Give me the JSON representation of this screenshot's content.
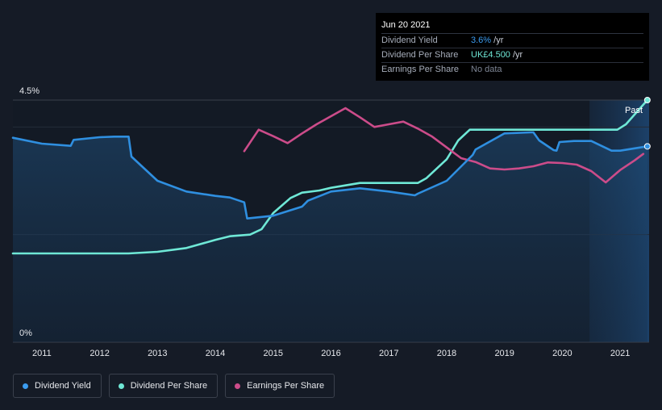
{
  "chart_data": {
    "type": "line",
    "y_axis": {
      "top_label": "4.5%",
      "bottom_label": "0%"
    },
    "x_axis": {
      "ticks": [
        "2011",
        "2012",
        "2013",
        "2014",
        "2015",
        "2016",
        "2017",
        "2018",
        "2019",
        "2020",
        "2021"
      ],
      "range": [
        2010.5,
        2021.5
      ]
    },
    "past_label": "Past",
    "series": [
      {
        "key": "yield",
        "name": "Dividend Yield",
        "color": "#2f8fe0",
        "filled": true,
        "points": [
          [
            2010.5,
            3.8
          ],
          [
            2011.0,
            3.69
          ],
          [
            2011.5,
            3.65
          ],
          [
            2011.55,
            3.76
          ],
          [
            2012.0,
            3.81
          ],
          [
            2012.25,
            3.82
          ],
          [
            2012.5,
            3.82
          ],
          [
            2012.55,
            3.45
          ],
          [
            2013.0,
            3.0
          ],
          [
            2013.5,
            2.8
          ],
          [
            2014.0,
            2.72
          ],
          [
            2014.25,
            2.69
          ],
          [
            2014.5,
            2.6
          ],
          [
            2014.55,
            2.3
          ],
          [
            2015.0,
            2.35
          ],
          [
            2015.5,
            2.52
          ],
          [
            2015.6,
            2.63
          ],
          [
            2016.0,
            2.8
          ],
          [
            2016.5,
            2.86
          ],
          [
            2017.0,
            2.8
          ],
          [
            2017.45,
            2.73
          ],
          [
            2017.5,
            2.76
          ],
          [
            2018.0,
            3.0
          ],
          [
            2018.45,
            3.48
          ],
          [
            2018.5,
            3.58
          ],
          [
            2019.0,
            3.88
          ],
          [
            2019.45,
            3.9
          ],
          [
            2019.5,
            3.9
          ],
          [
            2019.6,
            3.75
          ],
          [
            2019.85,
            3.57
          ],
          [
            2019.9,
            3.56
          ],
          [
            2019.95,
            3.72
          ],
          [
            2020.2,
            3.74
          ],
          [
            2020.5,
            3.74
          ],
          [
            2020.85,
            3.56
          ],
          [
            2021.0,
            3.56
          ],
          [
            2021.47,
            3.64
          ]
        ]
      },
      {
        "key": "dps",
        "name": "Dividend Per Share",
        "color": "#6fe8d6",
        "filled": false,
        "points": [
          [
            2010.5,
            1.65
          ],
          [
            2011.0,
            1.65
          ],
          [
            2011.5,
            1.65
          ],
          [
            2012.0,
            1.65
          ],
          [
            2012.5,
            1.65
          ],
          [
            2013.0,
            1.68
          ],
          [
            2013.5,
            1.75
          ],
          [
            2014.0,
            1.9
          ],
          [
            2014.25,
            1.97
          ],
          [
            2014.6,
            2.0
          ],
          [
            2014.8,
            2.1
          ],
          [
            2015.0,
            2.4
          ],
          [
            2015.3,
            2.68
          ],
          [
            2015.5,
            2.78
          ],
          [
            2015.8,
            2.82
          ],
          [
            2016.0,
            2.87
          ],
          [
            2016.5,
            2.96
          ],
          [
            2017.0,
            2.96
          ],
          [
            2017.5,
            2.96
          ],
          [
            2017.65,
            3.05
          ],
          [
            2018.0,
            3.4
          ],
          [
            2018.2,
            3.75
          ],
          [
            2018.4,
            3.95
          ],
          [
            2019.0,
            3.95
          ],
          [
            2019.5,
            3.95
          ],
          [
            2020.0,
            3.95
          ],
          [
            2020.5,
            3.95
          ],
          [
            2020.95,
            3.95
          ],
          [
            2021.1,
            4.05
          ],
          [
            2021.47,
            4.5
          ]
        ]
      },
      {
        "key": "eps",
        "name": "Earnings Per Share",
        "color": "#cc4c8a",
        "filled": false,
        "points": [
          [
            2014.5,
            3.55
          ],
          [
            2014.75,
            3.95
          ],
          [
            2015.0,
            3.83
          ],
          [
            2015.25,
            3.7
          ],
          [
            2015.5,
            3.88
          ],
          [
            2015.75,
            4.05
          ],
          [
            2016.0,
            4.2
          ],
          [
            2016.25,
            4.35
          ],
          [
            2016.5,
            4.18
          ],
          [
            2016.75,
            4.0
          ],
          [
            2017.0,
            4.05
          ],
          [
            2017.25,
            4.1
          ],
          [
            2017.5,
            3.97
          ],
          [
            2017.75,
            3.82
          ],
          [
            2018.0,
            3.62
          ],
          [
            2018.25,
            3.42
          ],
          [
            2018.5,
            3.35
          ],
          [
            2018.75,
            3.23
          ],
          [
            2019.0,
            3.21
          ],
          [
            2019.25,
            3.23
          ],
          [
            2019.5,
            3.27
          ],
          [
            2019.75,
            3.34
          ],
          [
            2020.0,
            3.33
          ],
          [
            2020.25,
            3.3
          ],
          [
            2020.5,
            3.18
          ],
          [
            2020.75,
            2.97
          ],
          [
            2021.0,
            3.2
          ],
          [
            2021.25,
            3.38
          ],
          [
            2021.4,
            3.5
          ]
        ]
      }
    ]
  },
  "tooltip": {
    "date": "Jun 20 2021",
    "rows": [
      {
        "label": "Dividend Yield",
        "value": "3.6%",
        "unit": " /yr"
      },
      {
        "label": "Dividend Per Share",
        "value": "UK£4.500",
        "unit": " /yr"
      },
      {
        "label": "Earnings Per Share",
        "value": "No data",
        "unit": ""
      }
    ]
  },
  "legend": [
    {
      "label": "Dividend Yield",
      "color": "#3b9cf0"
    },
    {
      "label": "Dividend Per Share",
      "color": "#6fe8d6"
    },
    {
      "label": "Earnings Per Share",
      "color": "#cc4c8a"
    }
  ]
}
